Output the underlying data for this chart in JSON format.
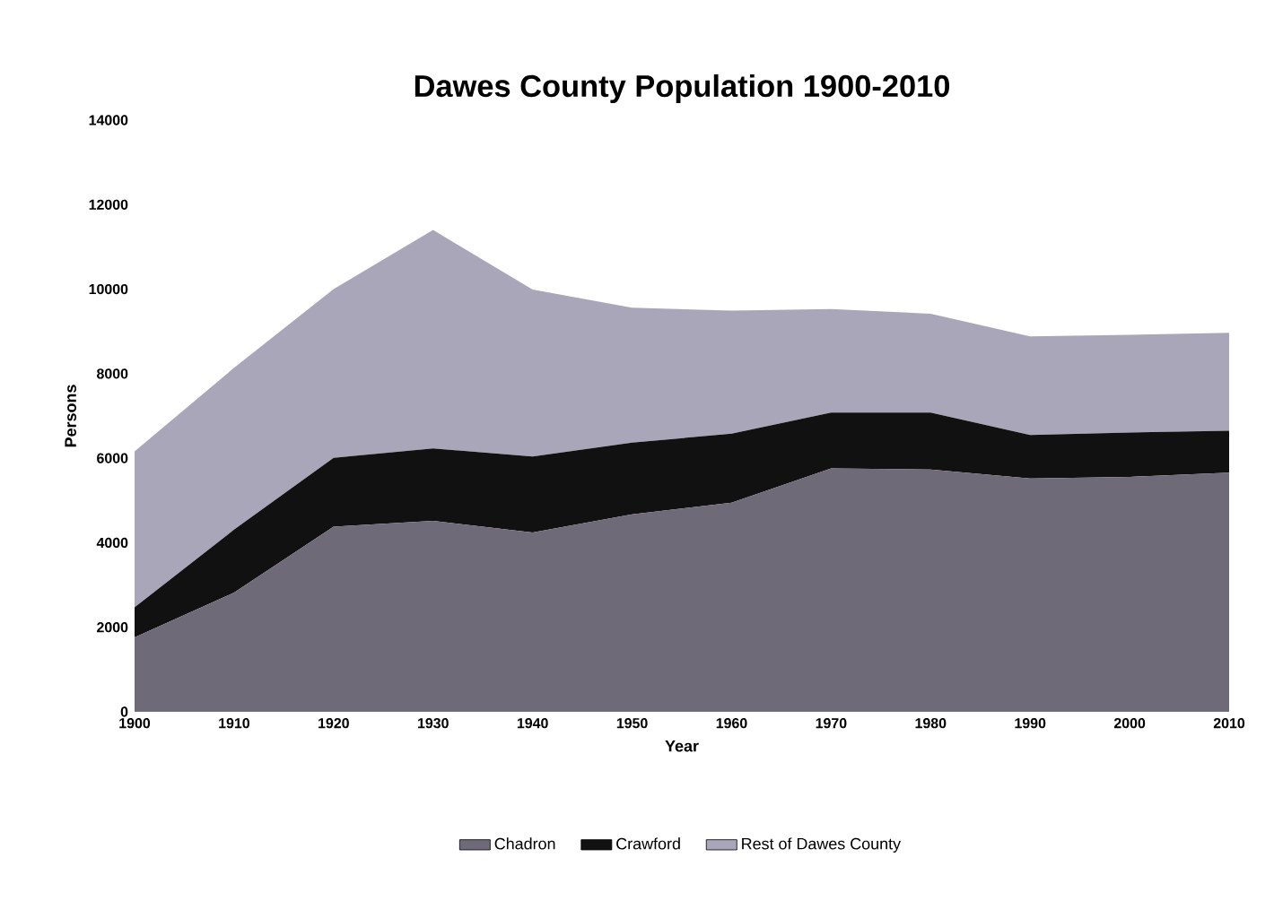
{
  "chart_data": {
    "type": "area",
    "title": "Dawes County Population 1900-2010",
    "xlabel": "Year",
    "ylabel": "Persons",
    "categories": [
      "1900",
      "1910",
      "1920",
      "1930",
      "1940",
      "1950",
      "1960",
      "1970",
      "1980",
      "1990",
      "2000",
      "2010"
    ],
    "stacked": true,
    "ylim": [
      0,
      14000
    ],
    "yticks": [
      0,
      2000,
      4000,
      6000,
      8000,
      10000,
      12000,
      14000
    ],
    "grid": false,
    "legend": "bottom",
    "series": [
      {
        "name": "Chadron",
        "color": "#6e6a78",
        "values": [
          1760,
          2820,
          4380,
          4520,
          4240,
          4670,
          4950,
          5760,
          5730,
          5520,
          5560,
          5660
        ]
      },
      {
        "name": "Crawford",
        "color": "#111111",
        "values": [
          710,
          1490,
          1630,
          1710,
          1800,
          1700,
          1630,
          1320,
          1350,
          1030,
          1050,
          990
        ]
      },
      {
        "name": "Rest of Dawes County",
        "color": "#a8a6b8",
        "values": [
          3690,
          3830,
          3990,
          5170,
          3950,
          3190,
          2910,
          2450,
          2340,
          2330,
          2310,
          2320
        ]
      }
    ]
  }
}
